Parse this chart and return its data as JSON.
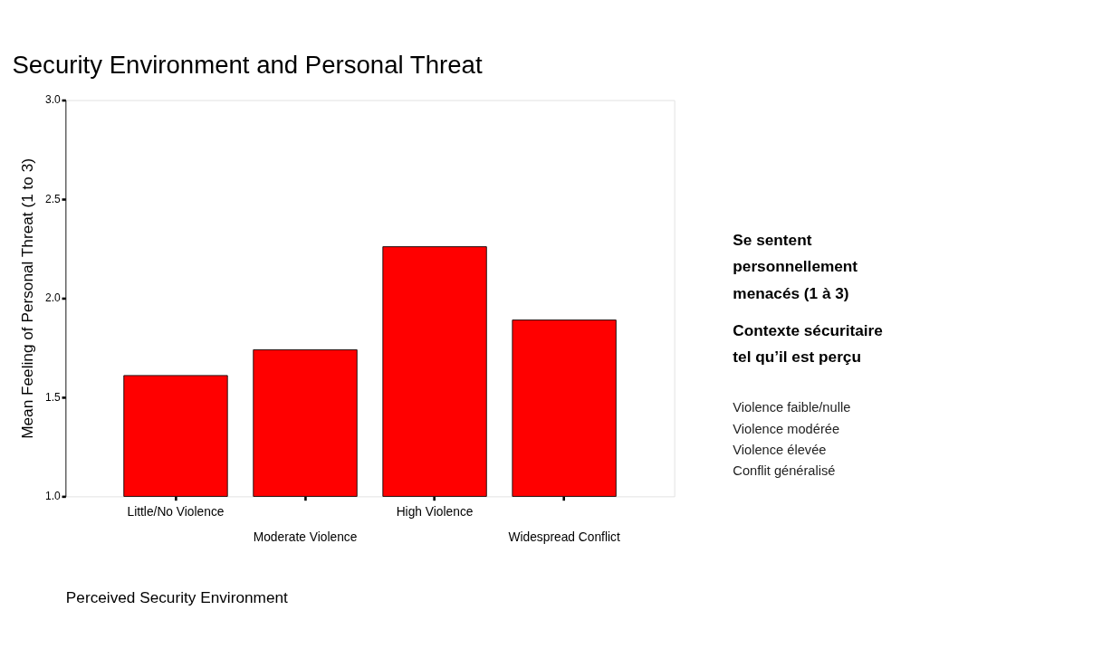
{
  "chart_data": {
    "type": "bar",
    "title": "Security Environment and Personal Threat",
    "xlabel": "Perceived Security Environment",
    "ylabel": "Mean Feeling of Personal Threat (1 to 3)",
    "categories": [
      "Little/No Violence",
      "Moderate Violence",
      "High Violence",
      "Widespread Conflict"
    ],
    "values": [
      1.61,
      1.74,
      2.26,
      1.89
    ],
    "color": "#ff0000",
    "ylim": [
      1.0,
      3.0
    ],
    "yticks": [
      {
        "value": 1.0,
        "label": "1.0"
      },
      {
        "value": 1.5,
        "label": "1.5"
      },
      {
        "value": 2.0,
        "label": "2.0"
      },
      {
        "value": 2.5,
        "label": "2.5"
      },
      {
        "value": 3.0,
        "label": "3.0"
      }
    ],
    "grid": false,
    "annotations": [
      "Se sentent personnellement menacés (1 à 3)",
      "Contexte sécuritaire tel qu’il est perçu",
      "Violence faible/nulle",
      "Violence modérée",
      "Violence élevée",
      "Conflit généralisé"
    ]
  }
}
